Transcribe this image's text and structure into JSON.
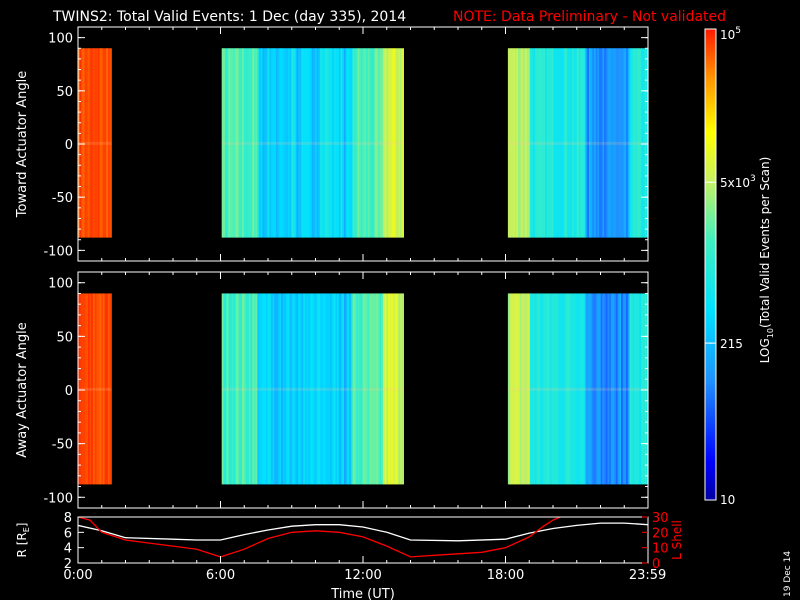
{
  "title": "TWINS2: Total Valid Events:  1 Dec (day 335), 2014",
  "note": "NOTE: Data Preliminary - Not validated",
  "footer_date": "19 Dec 14",
  "colors": {
    "background": "#000000",
    "axes": "#ffffff",
    "note": "#ff0000",
    "r_line": "#ffffff",
    "lshell_line": "#ff0000"
  },
  "colorbar": {
    "label": "LOG10(Total Valid Events per Scan)",
    "label_main": "LOG",
    "label_sub": "10",
    "label_rest": "(Total Valid Events per Scan)",
    "scale": "log",
    "range": [
      10,
      100000
    ],
    "ticks": [
      {
        "value": 100000,
        "text": "10",
        "sup": "5"
      },
      {
        "value": 5000,
        "text": "5x10",
        "sup": "3"
      },
      {
        "value": 215,
        "text": "215",
        "sup": ""
      },
      {
        "value": 10,
        "text": "10",
        "sup": ""
      }
    ]
  },
  "chart_data": [
    {
      "type": "heatmap",
      "ylabel": "Toward Actuator Angle",
      "ylim": [
        -110,
        110
      ],
      "yticks": [
        100,
        50,
        0,
        -50,
        -100
      ],
      "xlim": [
        0,
        24
      ],
      "angle_range": [
        -88,
        90
      ],
      "data_blocks": [
        {
          "start": 0.0,
          "end": 1.4,
          "level": "high",
          "log10_value": 4.8
        },
        {
          "start": 6.05,
          "end": 13.7,
          "level": "mixed",
          "log10_value": 3.2
        },
        {
          "start": 18.1,
          "end": 24.0,
          "level": "mixed-low",
          "log10_value": 2.9
        }
      ]
    },
    {
      "type": "heatmap",
      "ylabel": "Away Actuator Angle",
      "ylim": [
        -110,
        110
      ],
      "yticks": [
        100,
        50,
        0,
        -50,
        -100
      ],
      "xlim": [
        0,
        24
      ],
      "angle_range": [
        -88,
        90
      ],
      "data_blocks": [
        {
          "start": 0.0,
          "end": 1.4,
          "level": "high",
          "log10_value": 4.8
        },
        {
          "start": 6.05,
          "end": 13.7,
          "level": "mixed",
          "log10_value": 3.2
        },
        {
          "start": 18.1,
          "end": 24.0,
          "level": "mixed-low",
          "log10_value": 2.9
        }
      ]
    },
    {
      "type": "line",
      "ylabel": "R [RE]",
      "ylabel_main": "R [R",
      "ylabel_sub": "E",
      "ylabel_end": "]",
      "ylabel_right": "L Shell",
      "xlabel": "Time (UT)",
      "xlim": [
        0,
        24
      ],
      "ylim_left": [
        2,
        8
      ],
      "ylim_right": [
        0,
        30
      ],
      "yticks_left": [
        8,
        6,
        4,
        2
      ],
      "yticks_right": [
        30,
        20,
        10,
        0
      ],
      "xticks": [
        {
          "value": 0,
          "label": "0:00"
        },
        {
          "value": 6,
          "label": "6:00"
        },
        {
          "value": 12,
          "label": "12:00"
        },
        {
          "value": 18,
          "label": "18:00"
        },
        {
          "value": 23.983,
          "label": "23:59"
        }
      ],
      "series": [
        {
          "axis": "left",
          "x": [
            0,
            1,
            2,
            4,
            5,
            6,
            7,
            8,
            9,
            10,
            11,
            12,
            13,
            14,
            16,
            18,
            19,
            20,
            21,
            22,
            23,
            24
          ],
          "y": [
            6.9,
            6.2,
            5.3,
            5.1,
            5.0,
            5.0,
            5.7,
            6.3,
            6.8,
            7.0,
            7.0,
            6.7,
            6.0,
            5.0,
            4.9,
            5.1,
            5.9,
            6.5,
            6.9,
            7.2,
            7.2,
            7.0
          ]
        },
        {
          "axis": "right",
          "x": [
            0,
            0.5,
            1,
            2,
            3,
            4,
            5,
            6,
            7,
            8,
            9,
            10,
            11,
            12,
            13,
            14,
            15,
            16,
            17,
            18,
            19,
            19.6,
            20,
            20.6
          ],
          "y": [
            30,
            28,
            20,
            15,
            13,
            11,
            9,
            4,
            9,
            16,
            20,
            21,
            20,
            17,
            11,
            4,
            5,
            6,
            7,
            10,
            17,
            24,
            28,
            32
          ]
        }
      ]
    }
  ]
}
